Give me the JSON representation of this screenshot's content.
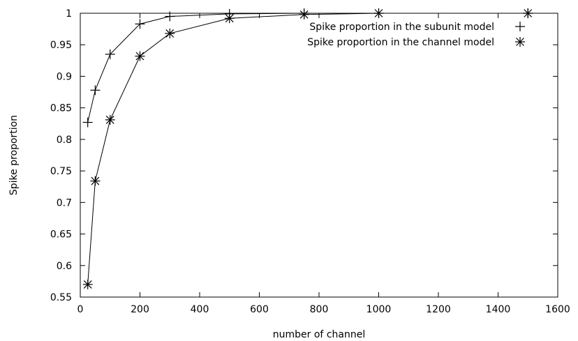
{
  "chart_data": {
    "type": "line",
    "title": "",
    "xlabel": "number of channel",
    "ylabel": "Spike proportion",
    "xlim": [
      0,
      1600
    ],
    "ylim": [
      0.55,
      1
    ],
    "xticks": [
      0,
      200,
      400,
      600,
      800,
      1000,
      1200,
      1400,
      1600
    ],
    "xtick_labels": [
      "0",
      "200",
      "400",
      "600",
      "800",
      "1000",
      "1200",
      "1400",
      "1600"
    ],
    "yticks": [
      0.55,
      0.6,
      0.65,
      0.7,
      0.75,
      0.8,
      0.85,
      0.9,
      0.95,
      1
    ],
    "ytick_labels": [
      "0.55",
      "0.6",
      "0.65",
      "0.7",
      "0.75",
      "0.8",
      "0.85",
      "0.9",
      "0.95",
      "1"
    ],
    "grid": false,
    "legend_position": "top-right",
    "series": [
      {
        "name": "Spike proportion in the subunit model",
        "marker": "plus",
        "x": [
          25,
          50,
          100,
          200,
          300,
          500,
          750,
          1000,
          1500
        ],
        "y": [
          0.827,
          0.878,
          0.935,
          0.983,
          0.995,
          0.999,
          1.0,
          1.0,
          1.0
        ]
      },
      {
        "name": "Spike proportion in the channel model",
        "marker": "asterisk",
        "x": [
          25,
          50,
          100,
          200,
          300,
          500,
          750,
          1000,
          1500
        ],
        "y": [
          0.57,
          0.734,
          0.831,
          0.932,
          0.968,
          0.992,
          0.998,
          1.0,
          1.0
        ]
      }
    ]
  }
}
